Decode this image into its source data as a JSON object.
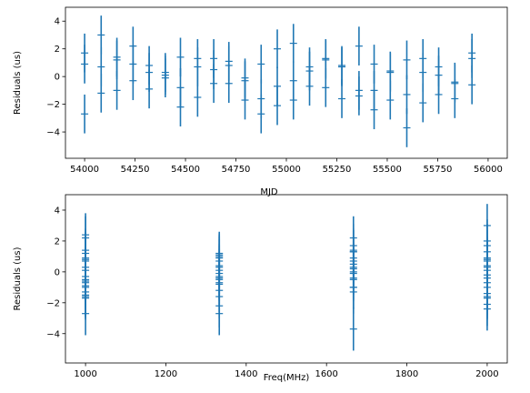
{
  "colors": {
    "series": "#1f77b4",
    "axes": "#000000"
  },
  "chart_data": [
    {
      "type": "scatter",
      "style": "errorbar",
      "xlabel": "MJD",
      "ylabel": "Residuals (us)",
      "xlim": [
        53905,
        56095
      ],
      "ylim": [
        -5.9,
        5.0
      ],
      "xticks": [
        54000,
        54250,
        54500,
        54750,
        55000,
        55250,
        55500,
        55750,
        56000
      ],
      "yticks": [
        -4,
        -2,
        0,
        2,
        4
      ],
      "xtick_labels": [
        "54000",
        "54250",
        "54500",
        "54750",
        "55000",
        "55250",
        "55500",
        "55750",
        "56000"
      ],
      "ytick_labels": [
        "−4",
        "−2",
        "0",
        "2",
        "4"
      ],
      "grid": false,
      "error_bar": 1.4,
      "x": [
        54000,
        54000,
        54000,
        54082,
        54082,
        54082,
        54160,
        54160,
        54160,
        54240,
        54240,
        54240,
        54320,
        54320,
        54320,
        54400,
        54400,
        54400,
        54475,
        54475,
        54475,
        54560,
        54560,
        54560,
        54640,
        54640,
        54640,
        54715,
        54715,
        54715,
        54795,
        54795,
        54795,
        54875,
        54875,
        54875,
        54955,
        54955,
        54955,
        55035,
        55035,
        55035,
        55115,
        55115,
        55115,
        55195,
        55195,
        55195,
        55275,
        55275,
        55275,
        55360,
        55360,
        55360,
        55435,
        55435,
        55435,
        55515,
        55515,
        55515,
        55597,
        55597,
        55597,
        55677,
        55677,
        55677,
        55755,
        55755,
        55755,
        55835,
        55835,
        55835,
        55920,
        55920,
        55920
      ],
      "y": [
        1.7,
        0.9,
        -2.7,
        3.0,
        0.7,
        -1.2,
        1.4,
        1.2,
        -1.0,
        2.2,
        0.9,
        -0.3,
        0.8,
        0.3,
        -0.9,
        0.3,
        0.1,
        -0.1,
        1.4,
        -0.8,
        -2.2,
        1.3,
        0.7,
        -1.5,
        1.3,
        0.5,
        -0.5,
        1.1,
        0.8,
        -0.5,
        -0.1,
        -0.3,
        -1.7,
        0.9,
        -1.6,
        -2.7,
        2.0,
        -0.7,
        -2.1,
        2.4,
        -0.3,
        -1.7,
        0.7,
        0.4,
        -0.7,
        1.3,
        1.2,
        -0.8,
        0.8,
        0.7,
        -1.6,
        2.2,
        -1.0,
        -1.4,
        0.9,
        -1.0,
        -2.4,
        0.4,
        0.3,
        -1.7,
        1.2,
        -1.3,
        -3.7,
        1.3,
        0.3,
        -1.9,
        0.7,
        0.1,
        -1.3,
        -0.4,
        -0.5,
        -1.6,
        1.7,
        1.3,
        -0.6
      ]
    },
    {
      "type": "scatter",
      "style": "errorbar",
      "xlabel": "Freq(MHz)",
      "ylabel": "Residuals (us)",
      "xlim": [
        950,
        2050
      ],
      "ylim": [
        -5.9,
        5.0
      ],
      "xticks": [
        1000,
        1200,
        1400,
        1600,
        1800,
        2000
      ],
      "yticks": [
        -4,
        -2,
        0,
        2,
        4
      ],
      "xtick_labels": [
        "1000",
        "1200",
        "1400",
        "1600",
        "1800",
        "2000"
      ],
      "ytick_labels": [
        "−4",
        "−2",
        "0",
        "2",
        "4"
      ],
      "grid": false,
      "error_bar": 1.4,
      "x": [
        1000,
        1000,
        1000,
        1000,
        1000,
        1000,
        1000,
        1000,
        1000,
        1000,
        1000,
        1000,
        1000,
        1000,
        1000,
        1000,
        1000,
        1000,
        1000,
        1000,
        1333,
        1333,
        1333,
        1333,
        1333,
        1333,
        1333,
        1333,
        1333,
        1333,
        1333,
        1333,
        1333,
        1333,
        1333,
        1333,
        1333,
        1333,
        1667,
        1667,
        1667,
        1667,
        1667,
        1667,
        1667,
        1667,
        1667,
        1667,
        1667,
        1667,
        1667,
        1667,
        1667,
        1667,
        1667,
        1667,
        2000,
        2000,
        2000,
        2000,
        2000,
        2000,
        2000,
        2000,
        2000,
        2000,
        2000,
        2000,
        2000,
        2000,
        2000,
        2000,
        2000,
        2000,
        2000
      ],
      "y": [
        2.4,
        2.2,
        1.4,
        1.2,
        0.9,
        0.8,
        0.7,
        0.3,
        0.1,
        -0.3,
        -0.5,
        -0.6,
        -0.7,
        -0.9,
        -1.0,
        -1.3,
        -1.5,
        -1.6,
        -1.7,
        -2.7,
        1.2,
        1.1,
        1.0,
        0.9,
        0.7,
        0.4,
        0.3,
        0.1,
        -0.1,
        -0.3,
        -0.4,
        -0.5,
        -0.7,
        -0.8,
        -1.2,
        -1.6,
        -2.2,
        -2.7,
        2.2,
        1.7,
        1.4,
        1.3,
        1.3,
        0.9,
        0.7,
        0.5,
        0.3,
        0.2,
        0.0,
        -0.1,
        -0.4,
        -0.5,
        -1.0,
        -1.0,
        -1.3,
        -3.7,
        3.0,
        2.0,
        1.7,
        1.3,
        0.9,
        0.8,
        0.7,
        0.4,
        0.3,
        0.1,
        -0.2,
        -0.4,
        -0.7,
        -1.0,
        -1.4,
        -1.6,
        -1.7,
        -2.1,
        -2.4
      ]
    }
  ]
}
